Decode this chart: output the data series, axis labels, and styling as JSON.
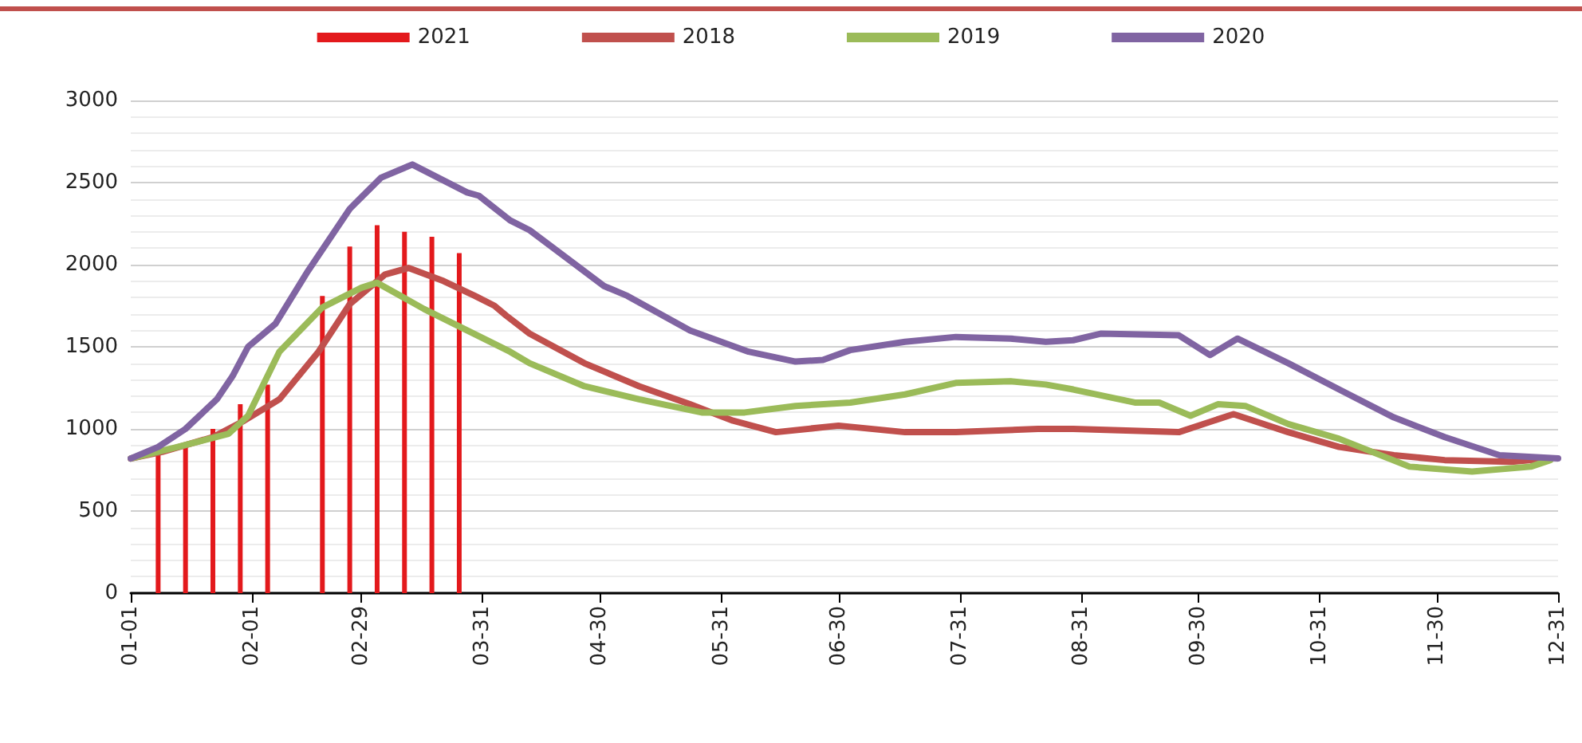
{
  "chart_data": {
    "type": "line",
    "legend": "top",
    "grid": "y",
    "marker": "none",
    "line_style": "solid",
    "xlim": [
      "--01-01",
      "--12-31"
    ],
    "xticks": [
      {
        "value": "--01-01",
        "label": "01-01"
      },
      {
        "value": "--02-01",
        "label": "02-01"
      },
      {
        "value": "--02-29",
        "label": "02-29"
      },
      {
        "value": "--03-31",
        "label": "03-31"
      },
      {
        "value": "--04-30",
        "label": "04-30"
      },
      {
        "value": "--05-31",
        "label": "05-31"
      },
      {
        "value": "--06-30",
        "label": "06-30"
      },
      {
        "value": "--07-31",
        "label": "07-31"
      },
      {
        "value": "--08-31",
        "label": "08-31"
      },
      {
        "value": "--09-30",
        "label": "09-30"
      },
      {
        "value": "--10-31",
        "label": "10-31"
      },
      {
        "value": "--11-30",
        "label": "11-30"
      },
      {
        "value": "--12-31",
        "label": "12-31"
      }
    ],
    "ylim": [
      0,
      3000
    ],
    "yticks": [
      0,
      500,
      1000,
      1500,
      2000,
      2500,
      3000
    ],
    "series": [
      {
        "name": "2021",
        "type": "bar",
        "color": "#e3191c",
        "x": [
          "--01-08",
          "--01-15",
          "--01-22",
          "--01-29",
          "--02-05",
          "--02-19",
          "--02-26",
          "--03-04",
          "--03-11",
          "--03-18",
          "--03-25"
        ],
        "values": [
          840,
          890,
          1000,
          1150,
          1270,
          1810,
          2110,
          2240,
          2200,
          2170,
          2070
        ]
      },
      {
        "name": "2018",
        "color": "#c0504d",
        "x": [
          "--01-01",
          "--01-09",
          "--01-22",
          "--01-30",
          "--02-08",
          "--02-18",
          "--02-26",
          "--03-06",
          "--03-12",
          "--03-21",
          "--03-29",
          "--04-03",
          "--04-06",
          "--04-12",
          "--04-26",
          "--05-10",
          "--05-23",
          "--06-03",
          "--06-14",
          "--06-30",
          "--07-17",
          "--07-30",
          "--08-20",
          "--08-29",
          "--09-25",
          "--10-09",
          "--10-23",
          "--11-05",
          "--11-19",
          "--12-02",
          "--12-19",
          "--12-29"
        ],
        "values": [
          820,
          860,
          950,
          1050,
          1180,
          1470,
          1760,
          1940,
          1980,
          1900,
          1810,
          1750,
          1690,
          1580,
          1400,
          1260,
          1150,
          1050,
          980,
          1020,
          980,
          980,
          1000,
          1000,
          980,
          1090,
          980,
          890,
          840,
          810,
          800,
          820
        ]
      },
      {
        "name": "2019",
        "color": "#9bbb59",
        "x": [
          "--01-01",
          "--01-13",
          "--01-26",
          "--01-31",
          "--02-08",
          "--02-19",
          "--02-29",
          "--03-04",
          "--03-16",
          "--03-27",
          "--04-07",
          "--04-12",
          "--04-26",
          "--05-10",
          "--05-26",
          "--06-06",
          "--06-19",
          "--07-03",
          "--07-17",
          "--07-30",
          "--08-13",
          "--08-22",
          "--08-29",
          "--09-14",
          "--09-20",
          "--09-28",
          "--10-05",
          "--10-12",
          "--10-23",
          "--11-05",
          "--11-23",
          "--12-09",
          "--12-24",
          "--12-29"
        ],
        "values": [
          820,
          890,
          970,
          1080,
          1470,
          1740,
          1860,
          1890,
          1730,
          1600,
          1470,
          1400,
          1260,
          1180,
          1100,
          1100,
          1140,
          1160,
          1210,
          1280,
          1290,
          1270,
          1240,
          1160,
          1160,
          1080,
          1150,
          1140,
          1030,
          940,
          770,
          740,
          770,
          810
        ]
      },
      {
        "name": "2020",
        "color": "#8064a2",
        "x": [
          "--01-01",
          "--01-08",
          "--01-15",
          "--01-23",
          "--01-27",
          "--01-31",
          "--02-07",
          "--02-15",
          "--02-26",
          "--03-05",
          "--03-13",
          "--03-27",
          "--03-30",
          "--04-07",
          "--04-12",
          "--05-01",
          "--05-07",
          "--05-23",
          "--06-07",
          "--06-19",
          "--06-26",
          "--07-03",
          "--07-17",
          "--07-30",
          "--08-13",
          "--08-22",
          "--08-29",
          "--09-05",
          "--09-25",
          "--10-03",
          "--10-10",
          "--10-23",
          "--11-05",
          "--11-19",
          "--12-02",
          "--12-16",
          "--12-31"
        ],
        "values": [
          820,
          890,
          1000,
          1180,
          1320,
          1500,
          1640,
          1950,
          2340,
          2530,
          2610,
          2440,
          2420,
          2270,
          2210,
          1870,
          1810,
          1600,
          1470,
          1410,
          1420,
          1480,
          1530,
          1560,
          1550,
          1530,
          1540,
          1580,
          1570,
          1450,
          1550,
          1400,
          1240,
          1070,
          950,
          840,
          820
        ]
      }
    ]
  }
}
